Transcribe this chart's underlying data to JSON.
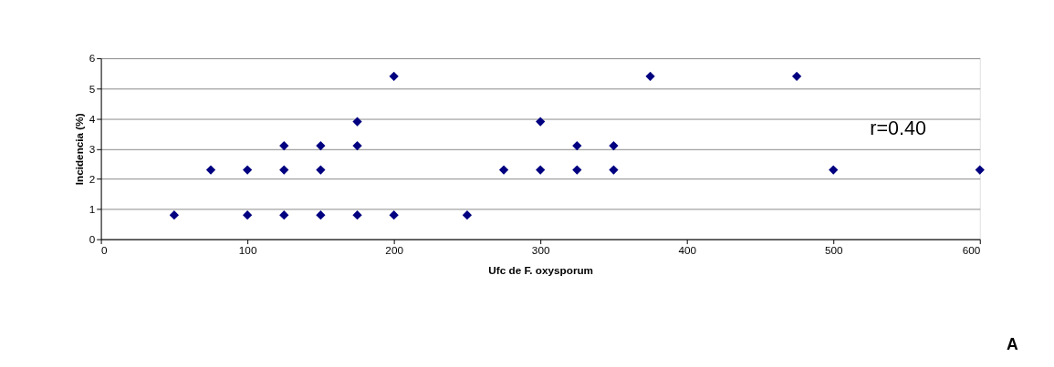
{
  "chart_data": {
    "type": "scatter",
    "xlabel": "Ufc de F. oxysporum",
    "ylabel": "Incidencia (%)",
    "x": [
      50,
      75,
      100,
      100,
      125,
      125,
      125,
      150,
      150,
      150,
      175,
      175,
      175,
      200,
      200,
      250,
      275,
      300,
      300,
      325,
      325,
      350,
      350,
      375,
      475,
      500,
      600
    ],
    "series": [
      {
        "color": "#000080",
        "values": [
          0.8,
          2.3,
          2.3,
          0.8,
          3.1,
          2.3,
          0.8,
          3.1,
          2.3,
          0.8,
          3.9,
          3.1,
          0.8,
          5.4,
          0.8,
          0.8,
          2.3,
          3.9,
          2.3,
          3.1,
          2.3,
          3.1,
          2.3,
          5.4,
          5.4,
          2.3,
          2.3
        ]
      }
    ],
    "xlim": [
      0,
      600
    ],
    "xticks": [
      0,
      100,
      200,
      300,
      400,
      500,
      600
    ],
    "ylim": [
      0,
      6
    ],
    "yticks": [
      0,
      1,
      2,
      3,
      4,
      5,
      6
    ],
    "grid": "y",
    "marker": "diamond",
    "annotations": [
      "r=0.40",
      "A"
    ]
  }
}
